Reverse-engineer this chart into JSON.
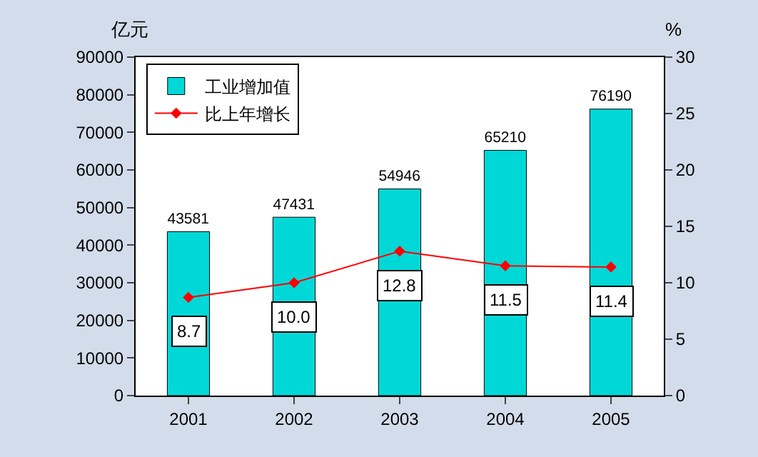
{
  "chart_data": {
    "type": "bar",
    "categories": [
      "2001",
      "2002",
      "2003",
      "2004",
      "2005"
    ],
    "ylabel": "亿元",
    "y2label": "%",
    "series": [
      {
        "name": "工业增加值",
        "color": "#00d8d8",
        "values": [
          43581,
          47431,
          54946,
          65210,
          76190
        ]
      },
      {
        "name": "比上年增长",
        "type": "line",
        "axis": "y2",
        "color": "#ff0000",
        "values": [
          8.7,
          10.0,
          12.8,
          11.5,
          11.4
        ],
        "value_labels": [
          "8.7",
          "10.0",
          "12.8",
          "11.5",
          "11.4"
        ]
      }
    ],
    "ylim": [
      0,
      90000
    ],
    "yticks": [
      0,
      10000,
      20000,
      30000,
      40000,
      50000,
      60000,
      70000,
      80000,
      90000
    ],
    "y2lim": [
      0,
      30
    ],
    "y2ticks": [
      0,
      5,
      10,
      15,
      20,
      25,
      30
    ],
    "data_labels": true,
    "legend": "top left",
    "marker": "diamond",
    "line_style": "solid",
    "grid": false
  }
}
